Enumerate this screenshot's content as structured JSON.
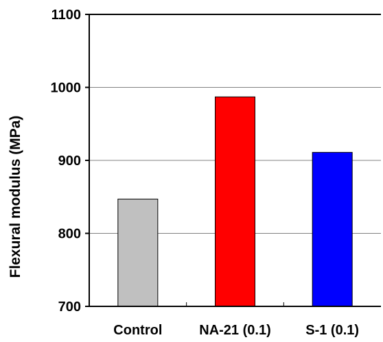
{
  "chart_data": {
    "type": "bar",
    "title": "",
    "xlabel": "",
    "ylabel": "Flexural modulus (MPa)",
    "ylim": [
      700,
      1100
    ],
    "yticks": [
      700,
      800,
      900,
      1000,
      1100
    ],
    "grid": true,
    "categories": [
      "Control",
      "NA-21 (0.1)",
      "S-1 (0.1)"
    ],
    "values": [
      847,
      987,
      911
    ],
    "colors": [
      "#c0c0c0",
      "#ff0000",
      "#0000ff"
    ]
  }
}
